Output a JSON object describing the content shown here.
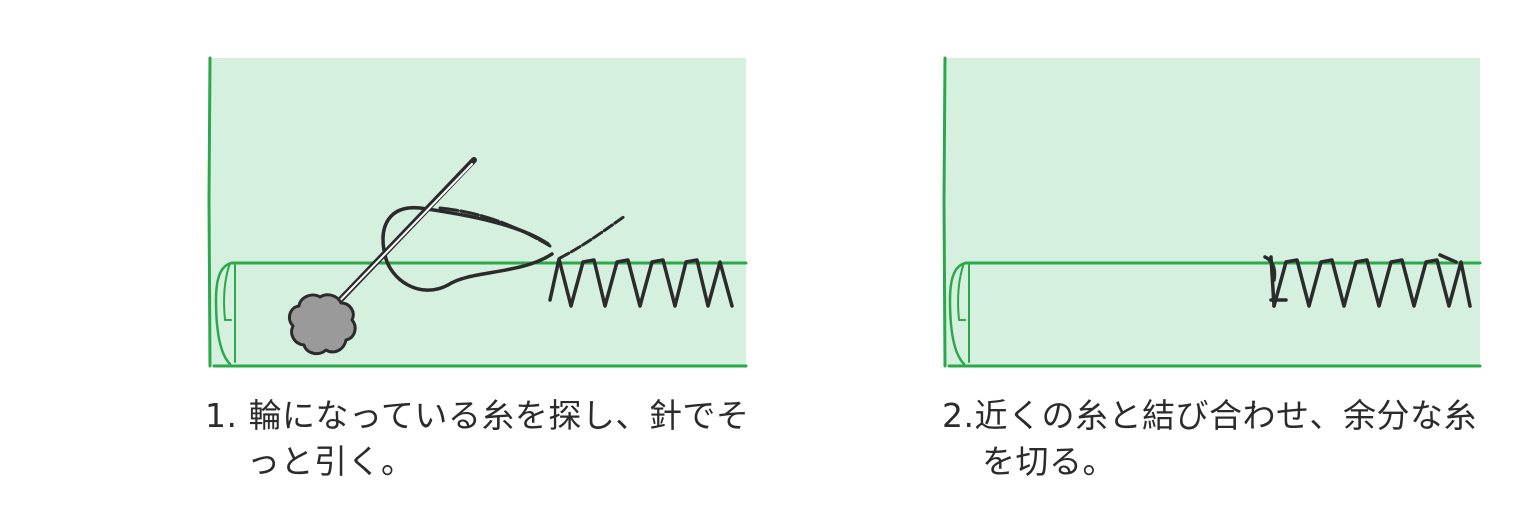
{
  "colors": {
    "fabric": "#d5f0df",
    "outline": "#2aa84a",
    "thread": "#2b2b2b",
    "bobble": "#9a9a9a",
    "caption_text": "#2b2b2b"
  },
  "panels": [
    {
      "caption": {
        "number": "1.",
        "line1": "輪になっている糸を探し、針でそ",
        "line2": "っと引く。"
      }
    },
    {
      "caption": {
        "number": "2.",
        "line1": "近くの糸と結び合わせ、余分な糸",
        "line2": "を切る。"
      }
    }
  ],
  "icons": [
    "needle-icon",
    "pin-head-icon",
    "thread-loop-icon",
    "zigzag-stitch-icon",
    "fabric-hem-icon"
  ]
}
